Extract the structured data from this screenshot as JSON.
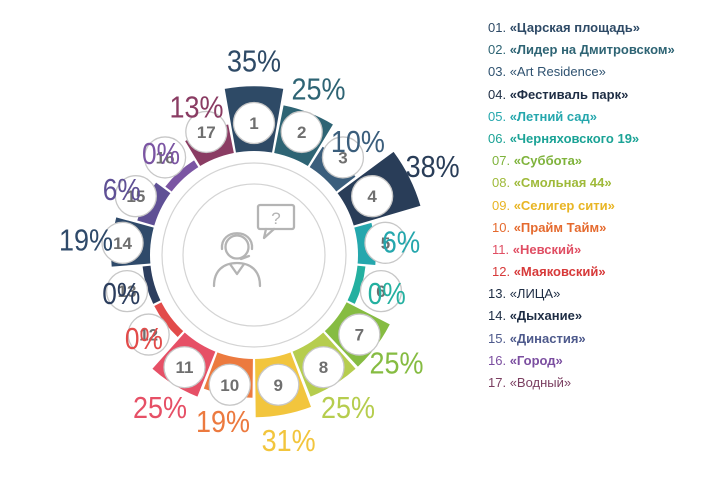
{
  "chart_data": {
    "type": "radial-bar",
    "categories": [
      {
        "index": "1",
        "value": 35,
        "label": "35%",
        "color": "#2e4a66",
        "legend_num": "01.",
        "legend_name": "«Царская  площадь»",
        "legend_color": "#2e4a66"
      },
      {
        "index": "2",
        "value": 25,
        "label": "25%",
        "color": "#2e6474",
        "legend_num": "02.",
        "legend_name": "«Лидер на Дмитровском»",
        "legend_color": "#2e6474"
      },
      {
        "index": "3",
        "value": 10,
        "label": "10%",
        "color": "#3b5e7c",
        "legend_num": "03.",
        "legend_name": "«Art Residence»",
        "legend_color": "#2f5270"
      },
      {
        "index": "4",
        "value": 38,
        "label": "38%",
        "color": "#293d58",
        "legend_num": "04.",
        "legend_name": "«Фестиваль парк»",
        "legend_color": "#1e2d44"
      },
      {
        "index": "5",
        "value": 6,
        "label": "6%",
        "color": "#25a7ad",
        "legend_num": "05.",
        "legend_name": "«Летний сад»",
        "legend_color": "#25a7ad"
      },
      {
        "index": "6",
        "value": 0,
        "label": "0%",
        "color": "#24b0a0",
        "legend_num": "06.",
        "legend_name": "«Черняховского 19»",
        "legend_color": "#1ba396"
      },
      {
        "index": "7",
        "value": 25,
        "label": "25%",
        "color": "#86bc42",
        "legend_num": "07.",
        "legend_name": "«Суббота»",
        "legend_color": "#7fb33c"
      },
      {
        "index": "8",
        "value": 25,
        "label": "25%",
        "color": "#b6cd4e",
        "legend_num": "08.",
        "legend_name": "«Смольная 44»",
        "legend_color": "#9fba3a"
      },
      {
        "index": "9",
        "value": 31,
        "label": "31%",
        "color": "#f2c53d",
        "legend_num": "09.",
        "legend_name": "«Селигер сити»",
        "legend_color": "#e8b524"
      },
      {
        "index": "10",
        "value": 19,
        "label": "19%",
        "color": "#ec7a3f",
        "legend_num": "10.",
        "legend_name": "«Прайм Тайм»",
        "legend_color": "#e56a2e"
      },
      {
        "index": "11",
        "value": 25,
        "label": "25%",
        "color": "#e65066",
        "legend_num": "11.",
        "legend_name": "«Невский»",
        "legend_color": "#e04e63"
      },
      {
        "index": "12",
        "value": 0,
        "label": "0%",
        "color": "#e24b4a",
        "legend_num": "12.",
        "legend_name": "«Маяковский»",
        "legend_color": "#d73a3a"
      },
      {
        "index": "13",
        "value": 0,
        "label": "0%",
        "color": "#2c3e5e",
        "legend_num": "13.",
        "legend_name": "«ЛИЦА»",
        "legend_color": "#1e2d44"
      },
      {
        "index": "14",
        "value": 19,
        "label": "19%",
        "color": "#2f4a6a",
        "legend_num": "14.",
        "legend_name": "«Дыхание»",
        "legend_color": "#1e2d44"
      },
      {
        "index": "15",
        "value": 6,
        "label": "6%",
        "color": "#5f5095",
        "legend_num": "15.",
        "legend_name": "«Династия»",
        "legend_color": "#4e5a8c"
      },
      {
        "index": "16",
        "value": 0,
        "label": "0%",
        "color": "#7b55a3",
        "legend_num": "16.",
        "legend_name": "«Город»",
        "legend_color": "#7b4ea0"
      },
      {
        "index": "17",
        "value": 13,
        "label": "13%",
        "color": "#8a3c63",
        "legend_num": "17.",
        "legend_name": "«Водный»",
        "legend_color": "#7a3e60"
      }
    ]
  },
  "icons": {
    "center": "support-operator-icon",
    "bubble_text": "?"
  }
}
